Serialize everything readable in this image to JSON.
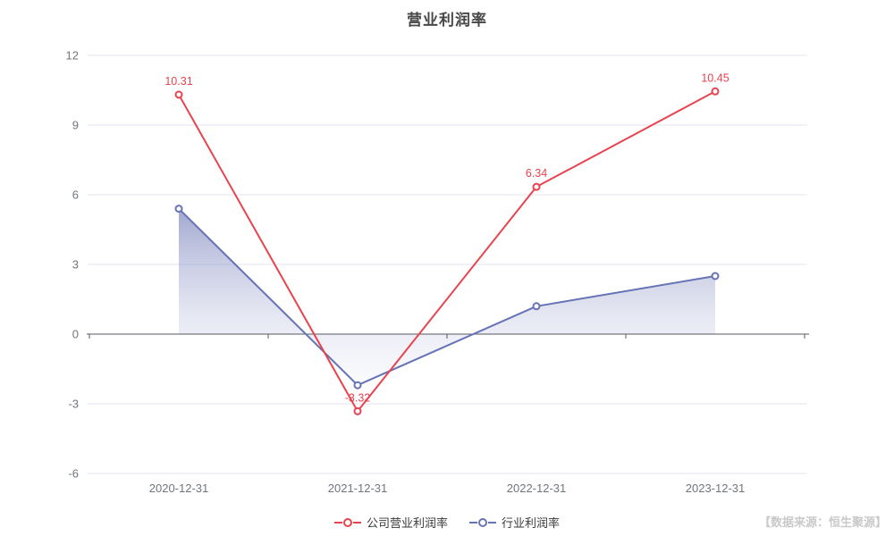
{
  "title": "营业利润率",
  "watermark": "【数据来源：恒生聚源】",
  "colors": {
    "company_line": "#e8434e",
    "industry_line": "#6673b5",
    "grid_line": "#e0e6f2",
    "axis_line": "#55585f",
    "axis_label": "#70757e",
    "title_text": "#474747",
    "legend_text": "#3a3a3a",
    "watermark_text": "#c9c9c9",
    "area_gradient_top": "rgba(104,114,178,0.62)",
    "area_gradient_bottom": "rgba(240,241,250,0.15)",
    "marker_fill": "#ffffff"
  },
  "legend": {
    "items": [
      {
        "label": "公司营业利润率",
        "color": "#e8434e"
      },
      {
        "label": "行业利润率",
        "color": "#6673b5"
      }
    ]
  },
  "chart_data": {
    "type": "line",
    "title": "营业利润率",
    "categories": [
      "2020-12-31",
      "2021-12-31",
      "2022-12-31",
      "2023-12-31"
    ],
    "series": [
      {
        "name": "公司营业利润率",
        "color": "#e8434e",
        "values": [
          10.31,
          -3.32,
          6.34,
          10.45
        ],
        "labels": [
          "10.31",
          "-3.32",
          "6.34",
          "10.45"
        ],
        "show_labels": true,
        "area": false
      },
      {
        "name": "行业利润率",
        "color": "#6673b5",
        "values": [
          5.4,
          -2.2,
          1.2,
          2.5
        ],
        "labels": [],
        "show_labels": false,
        "area": true
      }
    ],
    "xlabel": "",
    "ylabel": "",
    "ylim": [
      -6,
      12
    ],
    "yticks": [
      -6,
      -3,
      0,
      3,
      6,
      9,
      12
    ],
    "grid": true,
    "axis_line_on_zero": true,
    "legend_position": "bottom"
  }
}
